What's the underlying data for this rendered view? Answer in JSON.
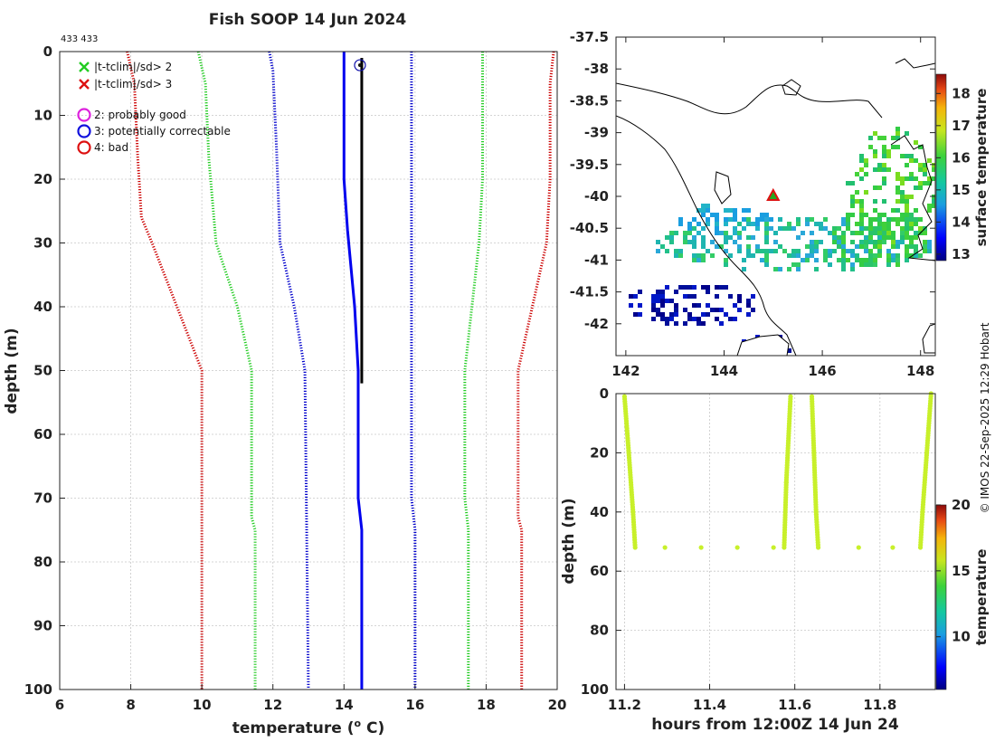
{
  "title": "Fish SOOP 14 Jun 2024",
  "id_label": "433 433",
  "credit": "© IMOS 22-Sep-2025 12:29 Hobart",
  "chart_data": [
    {
      "name": "profile",
      "type": "line",
      "xlabel": "temperature (",
      "xlabel_sup": "o",
      "xlabel_end": " C)",
      "ylabel": "depth (m)",
      "xlim": [
        6,
        20
      ],
      "ylim": [
        0,
        100
      ],
      "xticks": [
        6,
        8,
        10,
        12,
        14,
        16,
        18,
        20
      ],
      "yticks": [
        0,
        10,
        20,
        30,
        40,
        50,
        60,
        70,
        80,
        90,
        100
      ],
      "legend": [
        {
          "marker": "x",
          "color": "#22cc22",
          "label": "|t-tclim|/sd> 2"
        },
        {
          "marker": "x",
          "color": "#dd1111",
          "label": "|t-tclim|/sd> 3"
        },
        {
          "marker": "o",
          "color": "#dd22dd",
          "label": "2: probably good"
        },
        {
          "marker": "o",
          "color": "#1111dd",
          "label": "3: potentially correctable"
        },
        {
          "marker": "o",
          "color": "#dd1111",
          "label": "4: bad"
        }
      ],
      "series": [
        {
          "name": "red-left",
          "color": "#cc0000",
          "style": "dotted",
          "points": [
            [
              7.9,
              0
            ],
            [
              8.1,
              5
            ],
            [
              8.2,
              17
            ],
            [
              8.3,
              26
            ],
            [
              8.6,
              30
            ],
            [
              9.3,
              40
            ],
            [
              10.0,
              50
            ],
            [
              10.0,
              100
            ]
          ]
        },
        {
          "name": "green-left",
          "color": "#22cc22",
          "style": "dotted",
          "points": [
            [
              9.9,
              0
            ],
            [
              10.1,
              5
            ],
            [
              10.2,
              17
            ],
            [
              10.4,
              30
            ],
            [
              11.0,
              40
            ],
            [
              11.4,
              50
            ],
            [
              11.4,
              73
            ],
            [
              11.5,
              75
            ],
            [
              11.5,
              100
            ]
          ]
        },
        {
          "name": "blue-left",
          "color": "#0000cc",
          "style": "dotted",
          "points": [
            [
              11.9,
              0
            ],
            [
              12.0,
              3
            ],
            [
              12.1,
              15
            ],
            [
              12.2,
              30
            ],
            [
              12.6,
              40
            ],
            [
              12.9,
              50
            ],
            [
              13.0,
              100
            ]
          ]
        },
        {
          "name": "blue-right",
          "color": "#0000cc",
          "style": "dotted",
          "points": [
            [
              15.9,
              0
            ],
            [
              15.9,
              70
            ],
            [
              16.0,
              75
            ],
            [
              16.0,
              100
            ]
          ]
        },
        {
          "name": "green-right",
          "color": "#22cc22",
          "style": "dotted",
          "points": [
            [
              17.9,
              0
            ],
            [
              17.9,
              20
            ],
            [
              17.8,
              30
            ],
            [
              17.6,
              40
            ],
            [
              17.4,
              50
            ],
            [
              17.4,
              70
            ],
            [
              17.5,
              75
            ],
            [
              17.5,
              100
            ]
          ]
        },
        {
          "name": "red-right",
          "color": "#cc0000",
          "style": "dotted",
          "points": [
            [
              19.9,
              0
            ],
            [
              19.8,
              5
            ],
            [
              19.8,
              15
            ],
            [
              19.8,
              20
            ],
            [
              19.7,
              30
            ],
            [
              19.3,
              40
            ],
            [
              18.9,
              50
            ],
            [
              18.9,
              73
            ],
            [
              19.0,
              75
            ],
            [
              19.0,
              100
            ]
          ]
        },
        {
          "name": "profile-blue",
          "color": "#0000ee",
          "style": "solid",
          "width": 3,
          "points": [
            [
              14.0,
              0
            ],
            [
              14.0,
              10
            ],
            [
              14.0,
              20
            ],
            [
              14.1,
              28
            ],
            [
              14.3,
              40
            ],
            [
              14.4,
              50
            ],
            [
              14.4,
              70
            ],
            [
              14.5,
              75
            ],
            [
              14.5,
              100
            ]
          ]
        },
        {
          "name": "profile-black",
          "color": "#000000",
          "style": "solid",
          "width": 3,
          "points": [
            [
              14.5,
              1
            ],
            [
              14.5,
              52
            ]
          ]
        }
      ],
      "marker": {
        "label": "flag circle",
        "x": 14.45,
        "y": 1
      }
    },
    {
      "name": "map",
      "type": "heatmap",
      "xlim": [
        141.8,
        148.3
      ],
      "ylim": [
        -42.5,
        -37.5
      ],
      "xticks": [
        142,
        144,
        146,
        148
      ],
      "yticks": [
        -37.5,
        -38,
        -38.5,
        -39,
        -39.5,
        -40,
        -40.5,
        -41,
        -41.5,
        -42
      ],
      "colorbar_label": "surface temperature",
      "colorbar_ticks": [
        13,
        14,
        15,
        16,
        17,
        18
      ],
      "colorbar_range": [
        12.8,
        18.6
      ],
      "position_marker": {
        "lon": 145.0,
        "lat": -40.0
      }
    },
    {
      "name": "timeseries",
      "type": "scatter",
      "xlabel": "hours from 12:00Z 14 Jun 24",
      "ylabel": "depth (m)",
      "xlim": [
        11.18,
        11.93
      ],
      "ylim": [
        0,
        100
      ],
      "xticks": [
        11.2,
        11.4,
        11.6,
        11.8
      ],
      "yticks": [
        0,
        20,
        40,
        60,
        80,
        100
      ],
      "colorbar_label": "temperature",
      "colorbar_ticks": [
        10,
        15,
        20
      ],
      "colorbar_range": [
        6,
        20
      ],
      "point_color": "#c8f02a",
      "segments": [
        [
          [
            11.2,
            1
          ],
          [
            11.21,
            20
          ],
          [
            11.22,
            40
          ],
          [
            11.225,
            52
          ]
        ],
        [
          [
            11.575,
            52
          ],
          [
            11.58,
            30
          ],
          [
            11.59,
            1
          ]
        ],
        [
          [
            11.64,
            1
          ],
          [
            11.645,
            20
          ],
          [
            11.65,
            40
          ],
          [
            11.655,
            52
          ]
        ],
        [
          [
            11.895,
            52
          ],
          [
            11.9,
            40
          ],
          [
            11.91,
            20
          ],
          [
            11.92,
            0
          ]
        ]
      ],
      "bottom_points": [
        [
          11.295,
          52
        ],
        [
          11.38,
          52
        ],
        [
          11.465,
          52
        ],
        [
          11.55,
          52
        ],
        [
          11.75,
          52
        ],
        [
          11.83,
          52
        ]
      ]
    }
  ]
}
